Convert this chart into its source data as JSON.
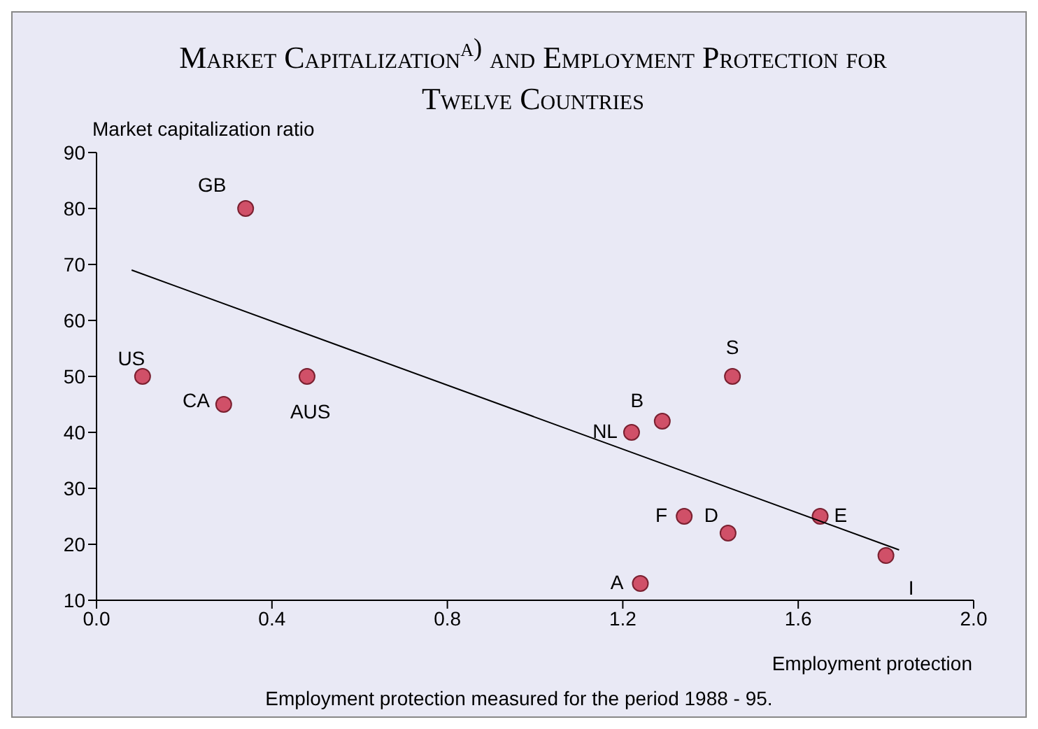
{
  "chart_data": {
    "type": "scatter",
    "title": "Market Capitalization$^{a)}$ and Employment Protection for Twelve Countries",
    "xlabel": "Employment protection",
    "ylabel": "Market capitalization ratio",
    "marker": "circle",
    "xlim": [
      0,
      2
    ],
    "xticks": [
      {
        "value": 0,
        "label": "0.0"
      },
      {
        "value": 0.4,
        "label": "0.4"
      },
      {
        "value": 0.8,
        "label": "0.8"
      },
      {
        "value": 1.2,
        "label": "1.2"
      },
      {
        "value": 1.6,
        "label": "1.6"
      },
      {
        "value": 2,
        "label": "2.0"
      }
    ],
    "ylim": [
      10,
      90
    ],
    "yticks": [
      10,
      20,
      30,
      40,
      50,
      60,
      70,
      80,
      90
    ],
    "series": [
      {
        "color": "#d05068",
        "x": [
          0.34,
          0.105,
          0.29,
          0.48,
          1.22,
          1.29,
          1.45,
          1.34,
          1.44,
          1.24,
          1.65,
          1.8
        ],
        "values": [
          80,
          50,
          45,
          50,
          40,
          42,
          50,
          25,
          22,
          13,
          25,
          18
        ]
      },
      {
        "type": "line",
        "color": "#000000",
        "marker": "none",
        "x": [
          0.08,
          1.83
        ],
        "values": [
          69,
          19
        ]
      }
    ],
    "annotations": [
      {
        "text": "GB",
        "x": 0.34,
        "y": 80
      },
      {
        "text": "US",
        "x": 0.105,
        "y": 50
      },
      {
        "text": "CA",
        "x": 0.29,
        "y": 45
      },
      {
        "text": "AUS",
        "x": 0.48,
        "y": 50
      },
      {
        "text": "NL",
        "x": 1.22,
        "y": 40
      },
      {
        "text": "B",
        "x": 1.29,
        "y": 42
      },
      {
        "text": "S",
        "x": 1.45,
        "y": 50
      },
      {
        "text": "F",
        "x": 1.34,
        "y": 25
      },
      {
        "text": "D",
        "x": 1.44,
        "y": 22
      },
      {
        "text": "A",
        "x": 1.24,
        "y": 13
      },
      {
        "text": "E",
        "x": 1.65,
        "y": 25
      },
      {
        "text": "I",
        "x": 1.8,
        "y": 18
      },
      "Employment protection measured for the period 1988 - 95."
    ]
  }
}
